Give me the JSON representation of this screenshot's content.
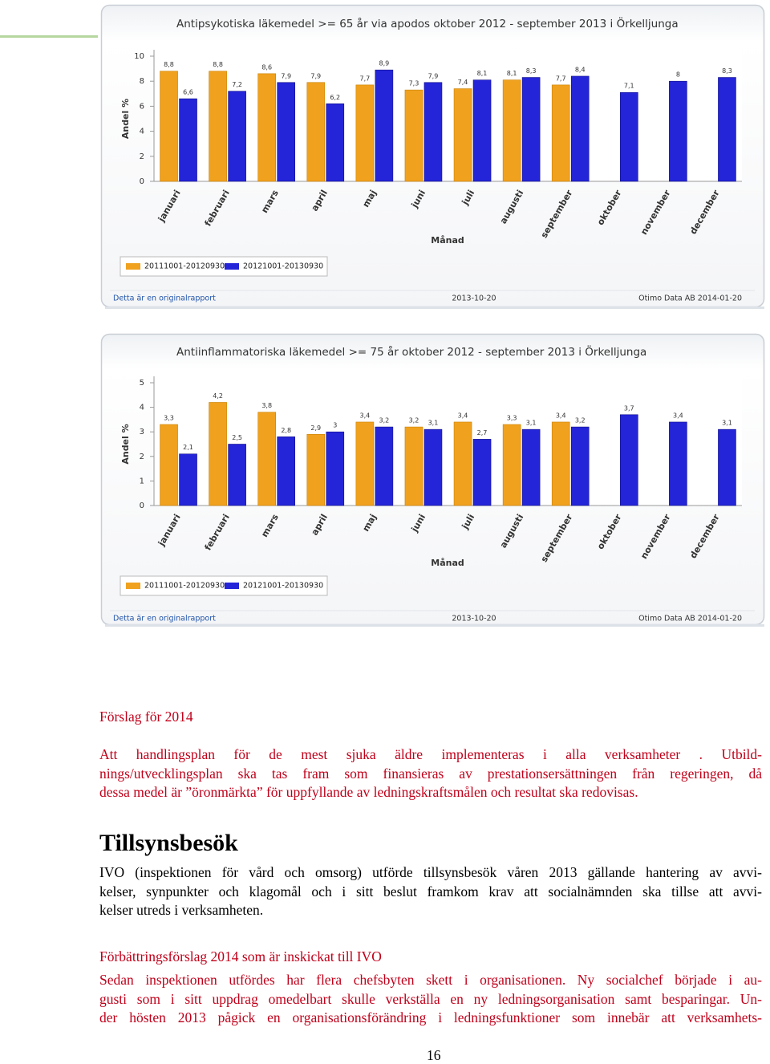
{
  "chart_data": [
    {
      "type": "bar",
      "title": "Antipsykotiska läkemedel >= 65 år via apodos oktober 2012 - september 2013 i Örkelljunga",
      "y_label": "Andel %",
      "x_label": "Månad",
      "categories": [
        "januari",
        "februari",
        "mars",
        "april",
        "maj",
        "juni",
        "juli",
        "augusti",
        "september",
        "oktober",
        "november",
        "december"
      ],
      "series": [
        {
          "name": "20111001-20120930",
          "color": "#f0a11e",
          "values": [
            8.8,
            8.8,
            8.6,
            7.9,
            7.7,
            7.3,
            7.4,
            8.1,
            7.7,
            null,
            null,
            null
          ],
          "value_labels": [
            "8,8",
            "8,8",
            "8,6",
            "7,9",
            "7,7",
            "7,3",
            "7,4",
            "8,1",
            "7,7",
            null,
            null,
            null
          ]
        },
        {
          "name": "20121001-20130930",
          "color": "#2424d8",
          "values": [
            6.6,
            7.2,
            7.9,
            6.2,
            8.9,
            7.9,
            8.1,
            8.3,
            8.4,
            7.1,
            8,
            8.3
          ],
          "value_labels": [
            "6,6",
            "7,2",
            "7,9",
            "6,2",
            "8,9",
            "7,9",
            "8,1",
            "8,3",
            "8,4",
            "7,1",
            "8",
            "8,3"
          ]
        }
      ],
      "ylim": [
        0,
        10
      ],
      "yticks": [
        0,
        2,
        4,
        6,
        8,
        10
      ],
      "footer": [
        "Detta är en originalrapport",
        "2013-10-20",
        "Otimo Data AB 2014-01-20"
      ]
    },
    {
      "type": "bar",
      "title": "Antiinflammatoriska läkemedel >= 75 år oktober 2012 - september 2013 i Örkelljunga",
      "y_label": "Andel %",
      "x_label": "Månad",
      "categories": [
        "januari",
        "februari",
        "mars",
        "april",
        "maj",
        "juni",
        "juli",
        "augusti",
        "september",
        "oktober",
        "november",
        "december"
      ],
      "series": [
        {
          "name": "20111001-20120930",
          "color": "#f0a11e",
          "values": [
            3.3,
            4.2,
            3.8,
            2.9,
            3.4,
            3.2,
            3.4,
            3.3,
            3.4,
            null,
            null,
            null
          ],
          "value_labels": [
            "3,3",
            "4,2",
            "3,8",
            "2,9",
            "3,4",
            "3,2",
            "3,4",
            "3,3",
            "3,4",
            null,
            null,
            null
          ]
        },
        {
          "name": "20121001-20130930",
          "color": "#2424d8",
          "values": [
            2.1,
            2.5,
            2.8,
            3,
            3.2,
            3.1,
            2.7,
            3.1,
            3.2,
            3.7,
            3.4,
            3.1
          ],
          "value_labels": [
            "2,1",
            "2,5",
            "2,8",
            "3",
            "3,2",
            "3,1",
            "2,7",
            "3,1",
            "3,2",
            "3,7",
            "3,4",
            "3,1"
          ]
        }
      ],
      "ylim": [
        0,
        5
      ],
      "yticks": [
        0,
        1,
        2,
        3,
        4,
        5
      ],
      "footer": [
        "Detta är en originalrapport",
        "2013-10-20",
        "Otimo Data AB 2014-01-20"
      ]
    }
  ],
  "document": {
    "heading_1": "Förslag för 2014",
    "paragraph_1": [
      "Att handlingsplan för de mest sjuka äldre implementeras i alla verksamheter . Utbild-",
      "nings/utvecklingsplan ska tas fram som finansieras av prestationsersättningen från regeringen, då",
      "dessa medel är ”öronmärkta” för uppfyllande av ledningskraftsmålen och resultat ska redovisas."
    ],
    "heading_2": "Tillsynsbesök",
    "paragraph_2": [
      "IVO (inspektionen för vård och omsorg) utförde tillsynsbesök våren 2013 gällande hantering av avvi-",
      "kelser, synpunkter och klagomål och i sitt beslut framkom krav att socialnämnden ska tillse att avvi-",
      "kelser utreds i verksamheten."
    ],
    "heading_3": "Förbättringsförslag 2014 som är inskickat till IVO",
    "paragraph_3": [
      "Sedan inspektionen utfördes har flera chefsbyten skett i organisationen. Ny socialchef började i au-",
      "gusti som i sitt uppdrag omedelbart skulle verkställa en ny ledningsorganisation samt besparingar. Un-",
      "der hösten 2013 pågick en organisationsförändring i ledningsfunktioner som innebär att verksamhets-"
    ],
    "page_number": "16"
  }
}
